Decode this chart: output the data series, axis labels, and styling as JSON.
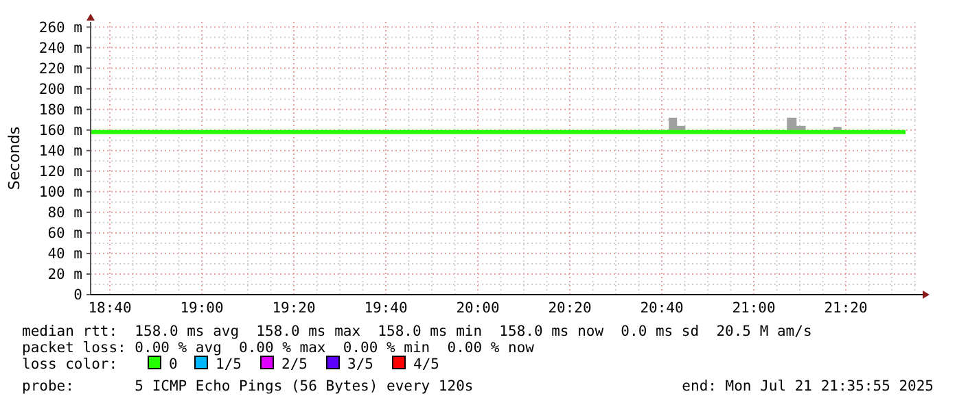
{
  "chart_data": {
    "type": "step",
    "ylabel": "Seconds",
    "legend_title": "loss color:",
    "legend": "bottom",
    "grid": true,
    "marker": "none",
    "line_style": "solid",
    "xlim": [
      18.597,
      21.592
    ],
    "ylim": [
      0,
      265
    ],
    "xticks": [
      {
        "value": 18.6667,
        "label": "18:40"
      },
      {
        "value": 19,
        "label": "19:00"
      },
      {
        "value": 19.3333,
        "label": "19:20"
      },
      {
        "value": 19.6667,
        "label": "19:40"
      },
      {
        "value": 20,
        "label": "20:00"
      },
      {
        "value": 20.3333,
        "label": "20:20"
      },
      {
        "value": 20.6667,
        "label": "20:40"
      },
      {
        "value": 21,
        "label": "21:00"
      },
      {
        "value": 21.3333,
        "label": "21:20"
      }
    ],
    "yticks": [
      0,
      {
        "value": 20,
        "label": "20 m"
      },
      {
        "value": 40,
        "label": "40 m"
      },
      {
        "value": 60,
        "label": "60 m"
      },
      {
        "value": 80,
        "label": "80 m"
      },
      {
        "value": 100,
        "label": "100 m"
      },
      {
        "value": 120,
        "label": "120 m"
      },
      {
        "value": 140,
        "label": "140 m"
      },
      {
        "value": 160,
        "label": "160 m"
      },
      {
        "value": 180,
        "label": "180 m"
      },
      {
        "value": 200,
        "label": "200 m"
      },
      {
        "value": 220,
        "label": "220 m"
      },
      {
        "value": 240,
        "label": "240 m"
      },
      {
        "value": 260,
        "label": "260 m"
      }
    ],
    "x": [
      18.597,
      20.692,
      20.722,
      20.752,
      21.12,
      21.155,
      21.188,
      21.288,
      21.318,
      21.55
    ],
    "series": [
      {
        "name": "0",
        "color": "#26ff00",
        "values": [
          158,
          158,
          158,
          158,
          158,
          158,
          158,
          158,
          158,
          158
        ],
        "lower": [
          158,
          158,
          158,
          158,
          158,
          158,
          158,
          158,
          158,
          158
        ],
        "upper": [
          158,
          172,
          164,
          158,
          172,
          164,
          158,
          163,
          158,
          158
        ]
      },
      {
        "name": "1/5",
        "color": "#00b8ff",
        "values": [
          null,
          null,
          null,
          null,
          null,
          null,
          null,
          null,
          null,
          null
        ]
      },
      {
        "name": "2/5",
        "color": "#dd00ff",
        "values": [
          null,
          null,
          null,
          null,
          null,
          null,
          null,
          null,
          null,
          null
        ]
      },
      {
        "name": "3/5",
        "color": "#5e00ff",
        "values": [
          null,
          null,
          null,
          null,
          null,
          null,
          null,
          null,
          null,
          null
        ]
      },
      {
        "name": "4/5",
        "color": "#ff0000",
        "values": [
          null,
          null,
          null,
          null,
          null,
          null,
          null,
          null,
          null,
          null
        ]
      }
    ],
    "annotations": [
      "median rtt:  158.0 ms avg  158.0 ms max  158.0 ms min  158.0 ms now  0.0 ms sd  20.5 M am/s",
      "packet loss: 0.00 % avg  0.00 % max  0.00 % min  0.00 % now",
      "probe:       5 ICMP Echo Pings (56 Bytes) every 120s",
      "end: Mon Jul 21 21:35:55 2025"
    ]
  }
}
